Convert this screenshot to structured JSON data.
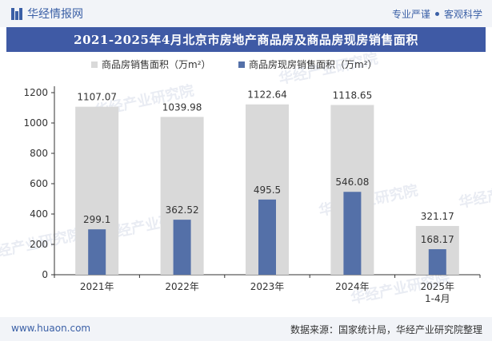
{
  "header": {
    "brand": "华经情报网",
    "tagline_left": "专业严谨",
    "tagline_right": "客观科学"
  },
  "chart_data": {
    "type": "bar",
    "title": "2021-2025年4月北京市房地产商品房及商品房现房销售面积",
    "categories": [
      "2021年",
      "2022年",
      "2023年",
      "2024年",
      "2025年\n1-4月"
    ],
    "series": [
      {
        "name": "商品房销售面积（万m²）",
        "color": "#d9d9d9",
        "values": [
          1107.07,
          1039.98,
          1122.64,
          1118.65,
          321.17
        ]
      },
      {
        "name": "商品房现房销售面积（万m²）",
        "color": "#5470a8",
        "values": [
          299.1,
          362.52,
          495.5,
          546.08,
          168.17
        ]
      }
    ],
    "value_labels": [
      [
        "1107.07",
        "1039.98",
        "1122.64",
        "1118.65",
        "321.17"
      ],
      [
        "299.1",
        "362.52",
        "495.5",
        "546.08",
        "168.17"
      ]
    ],
    "yticks": [
      0,
      200,
      400,
      600,
      800,
      1000,
      1200
    ],
    "ylim": [
      0,
      1200
    ],
    "xlabel": "",
    "ylabel": "",
    "legend_position": "top-center",
    "watermark": "华经产业研究院"
  },
  "footer": {
    "website": "www.huaon.com",
    "source": "数据来源：国家统计局，华经产业研究院整理"
  }
}
